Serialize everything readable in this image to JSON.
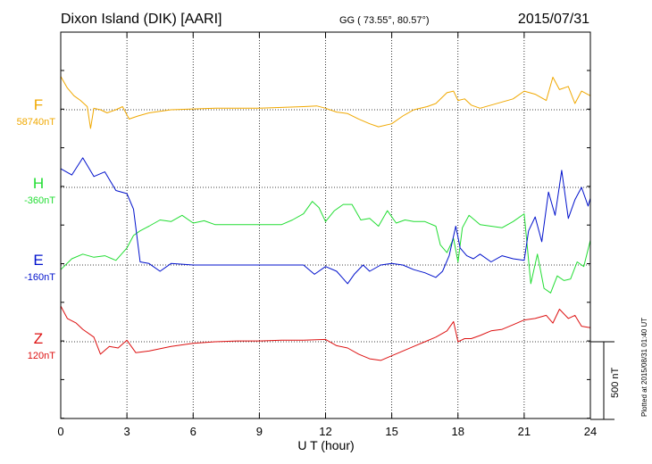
{
  "header": {
    "station": "Dixon Island (DIK)  [AARI]",
    "coords": "GG ( 73.55°,  80.57°)",
    "date": "2015/07/31"
  },
  "plotted_note": "Plotted at 2015/08/31 01:40 UT",
  "chart_data": {
    "type": "line",
    "xlabel": "U T (hour)",
    "xlim": [
      0,
      24
    ],
    "xticks": [
      "0",
      "3",
      "6",
      "9",
      "12",
      "15",
      "18",
      "21",
      "24"
    ],
    "scale_bar_label": "500 nT",
    "scale_bar_nT": 500,
    "series": [
      {
        "name": "F",
        "baseline_label": "58740nT",
        "color": "#f0a800",
        "x": [
          0,
          0.3,
          0.6,
          0.9,
          1.2,
          1.35,
          1.5,
          1.8,
          2.1,
          2.5,
          2.8,
          3.1,
          3.5,
          4,
          5,
          6,
          7,
          8,
          9,
          10,
          11,
          11.6,
          12,
          12.5,
          13,
          13.5,
          14,
          14.4,
          15,
          15.5,
          16,
          16.6,
          17,
          17.5,
          17.8,
          18,
          18.3,
          18.6,
          19,
          19.5,
          20,
          20.5,
          21,
          21.5,
          22,
          22.3,
          22.6,
          23,
          23.3,
          23.6,
          24
        ],
        "y": [
          215,
          140,
          90,
          60,
          20,
          -120,
          10,
          0,
          -20,
          0,
          20,
          -60,
          -40,
          -20,
          0,
          5,
          10,
          10,
          10,
          15,
          20,
          25,
          10,
          -15,
          -25,
          -60,
          -90,
          -110,
          -90,
          -40,
          0,
          20,
          40,
          110,
          120,
          60,
          70,
          30,
          10,
          30,
          50,
          70,
          120,
          100,
          60,
          210,
          130,
          150,
          40,
          120,
          90
        ]
      },
      {
        "name": "H",
        "baseline_label": "-360nT",
        "color": "#22dd33",
        "x": [
          0,
          0.5,
          1,
          1.5,
          2,
          2.5,
          3,
          3.3,
          3.6,
          4,
          4.5,
          5,
          5.5,
          6,
          6.5,
          7,
          8,
          9,
          10,
          10.5,
          11,
          11.4,
          11.7,
          12,
          12.4,
          12.8,
          13.2,
          13.6,
          14,
          14.4,
          14.8,
          15.2,
          15.6,
          16,
          16.5,
          17,
          17.2,
          17.5,
          17.8,
          18,
          18.2,
          18.5,
          19,
          19.5,
          20,
          20.5,
          21,
          21.3,
          21.6,
          21.9,
          22.2,
          22.5,
          22.8,
          23.1,
          23.4,
          23.7,
          24
        ],
        "y": [
          -530,
          -460,
          -430,
          -450,
          -440,
          -470,
          -390,
          -310,
          -280,
          -250,
          -210,
          -220,
          -180,
          -230,
          -215,
          -240,
          -240,
          -240,
          -240,
          -210,
          -170,
          -90,
          -130,
          -220,
          -150,
          -110,
          -110,
          -210,
          -200,
          -250,
          -150,
          -230,
          -210,
          -220,
          -220,
          -250,
          -370,
          -420,
          -330,
          -480,
          -260,
          -180,
          -240,
          -250,
          -260,
          -220,
          -170,
          -620,
          -430,
          -650,
          -680,
          -570,
          -600,
          -590,
          -480,
          -510,
          -340
        ]
      },
      {
        "name": "E",
        "baseline_label": "-160nT",
        "color": "#0011cc",
        "x": [
          0,
          0.5,
          1,
          1.5,
          2,
          2.5,
          3,
          3.3,
          3.6,
          4,
          4.5,
          5,
          6,
          7,
          8,
          9,
          10,
          11,
          11.5,
          12,
          12.5,
          13,
          13.3,
          13.7,
          14,
          14.5,
          15,
          15.5,
          16,
          16.5,
          17,
          17.3,
          17.6,
          17.9,
          18.1,
          18.4,
          18.7,
          19,
          19.5,
          20,
          20.5,
          21,
          21.2,
          21.5,
          21.8,
          22.1,
          22.4,
          22.7,
          23,
          23.3,
          23.6,
          23.9,
          24
        ],
        "y": [
          620,
          580,
          690,
          570,
          600,
          480,
          460,
          360,
          20,
          10,
          -40,
          10,
          0,
          0,
          0,
          0,
          0,
          0,
          -60,
          -10,
          -40,
          -120,
          -60,
          0,
          -40,
          0,
          10,
          0,
          -30,
          -50,
          -80,
          -40,
          60,
          250,
          110,
          60,
          40,
          70,
          20,
          60,
          40,
          30,
          220,
          310,
          150,
          470,
          320,
          610,
          300,
          420,
          500,
          380,
          430
        ]
      },
      {
        "name": "Z",
        "baseline_label": "120nT",
        "color": "#dd1111",
        "x": [
          0,
          0.3,
          0.7,
          1,
          1.5,
          1.8,
          2.2,
          2.6,
          3,
          3.4,
          4,
          5,
          6,
          7,
          8,
          9,
          10,
          11,
          12,
          12.5,
          13,
          13.5,
          14,
          14.5,
          15,
          15.5,
          16,
          16.5,
          17,
          17.5,
          17.8,
          18,
          18.3,
          18.6,
          19,
          19.5,
          20,
          20.5,
          21,
          21.5,
          22,
          22.3,
          22.6,
          23,
          23.3,
          23.6,
          24
        ],
        "y": [
          230,
          150,
          120,
          80,
          30,
          -80,
          -30,
          -40,
          10,
          -70,
          -60,
          -30,
          -10,
          0,
          5,
          5,
          10,
          10,
          15,
          -25,
          -40,
          -80,
          -110,
          -120,
          -90,
          -60,
          -30,
          0,
          30,
          70,
          130,
          0,
          20,
          20,
          40,
          70,
          80,
          110,
          140,
          150,
          170,
          120,
          210,
          150,
          170,
          100,
          90
        ]
      }
    ]
  }
}
